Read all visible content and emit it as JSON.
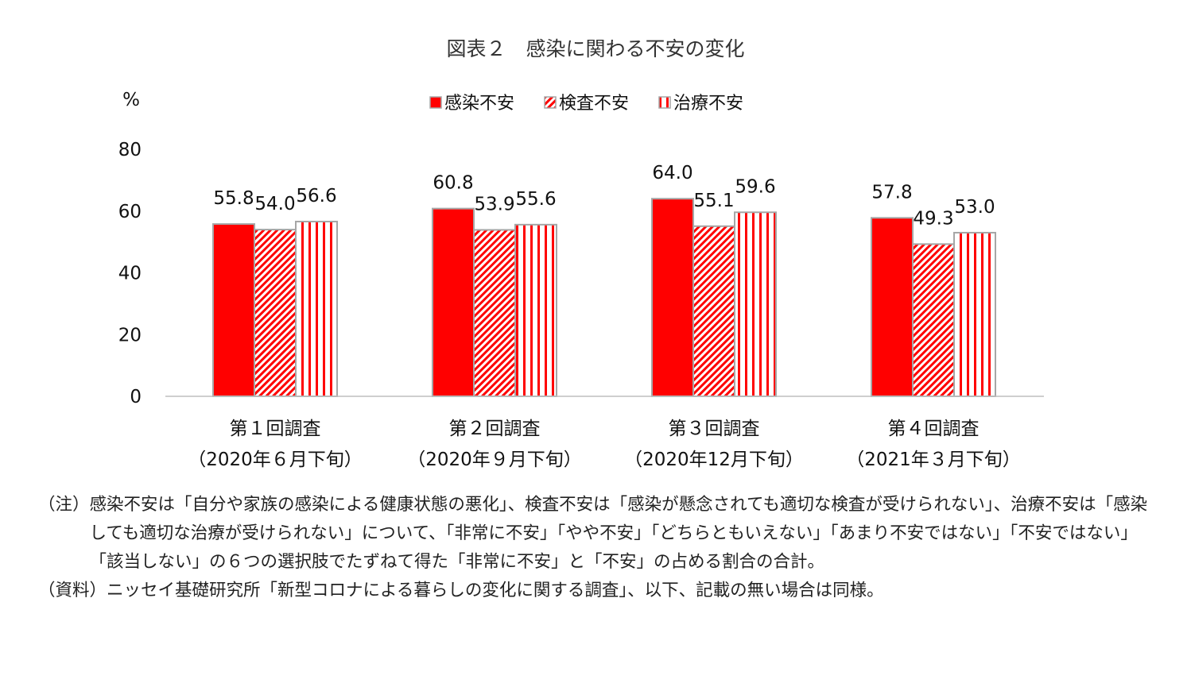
{
  "chart_data": {
    "type": "bar",
    "title": "図表２　感染に関わる不安の変化",
    "ylabel": "%",
    "ylim": [
      0,
      80
    ],
    "yticks": [
      "0",
      "20",
      "40",
      "60",
      "80"
    ],
    "grid": false,
    "legend_position": "top-center",
    "categories": [
      {
        "line1": "第１回調査",
        "line2": "（2020年６月下旬）"
      },
      {
        "line1": "第２回調査",
        "line2": "（2020年９月下旬）"
      },
      {
        "line1": "第３回調査",
        "line2": "（2020年12月下旬）"
      },
      {
        "line1": "第４回調査",
        "line2": "（2021年３月下旬）"
      }
    ],
    "series": [
      {
        "name": "感染不安",
        "values": [
          55.8,
          60.8,
          64.0,
          57.8
        ],
        "labels": [
          "55.8",
          "60.8",
          "64.0",
          "57.8"
        ],
        "pattern": "solid",
        "color": "#ff0000"
      },
      {
        "name": "検査不安",
        "values": [
          54.0,
          53.9,
          55.1,
          49.3
        ],
        "labels": [
          "54.0",
          "53.9",
          "55.1",
          "49.3"
        ],
        "pattern": "diagonal-hatch",
        "color": "#ff0000"
      },
      {
        "name": "治療不安",
        "values": [
          56.6,
          55.6,
          59.6,
          53.0
        ],
        "labels": [
          "56.6",
          "55.6",
          "59.6",
          "53.0"
        ],
        "pattern": "vertical-stripes",
        "color": "#ff0000"
      }
    ]
  },
  "notes": [
    {
      "head": "（注）",
      "text": "感染不安は「自分や家族の感染による健康状態の悪化」、検査不安は「感染が懸念されても適切な検査が受けられない」、治療不安は「感染しても適切な治療が受けられない」について、「非常に不安」「やや不安」「どちらともいえない」「あまり不安ではない」「不安ではない」「該当しない」の６つの選択肢でたずねて得た「非常に不安」と「不安」の占める割合の合計。"
    },
    {
      "head": "（資料）",
      "text": "ニッセイ基礎研究所「新型コロナによる暮らしの変化に関する調査」、以下、記載の無い場合は同様。"
    }
  ]
}
